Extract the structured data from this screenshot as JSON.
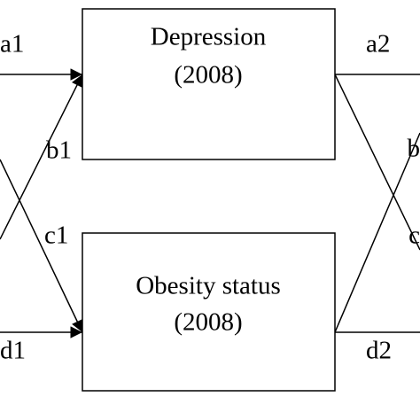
{
  "nodes": [
    {
      "label": "Depression",
      "sublabel": "(2008)"
    },
    {
      "label": "Obesity status",
      "sublabel": "(2008)"
    }
  ],
  "edges": {
    "a1": "a1",
    "b1": "b1",
    "c1": "c1",
    "d1": "d1",
    "a2": "a2",
    "d2": "d2",
    "b2": "b",
    "c2": "c"
  }
}
